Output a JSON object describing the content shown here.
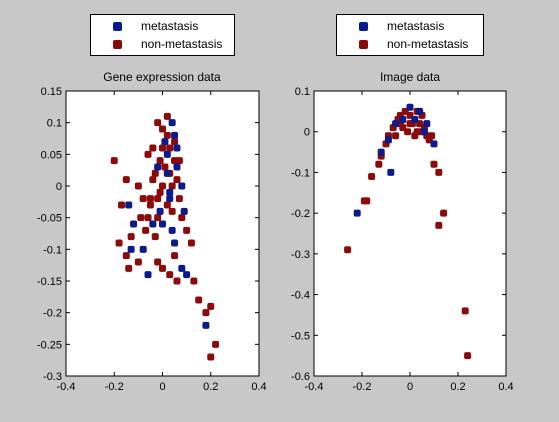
{
  "colors": {
    "figure_background": "#c8c8c8",
    "axes_background": "#ffffff",
    "metastasis": "#0b1a8c",
    "non_metastasis": "#8b0a0a"
  },
  "chart_data": [
    {
      "type": "scatter",
      "title": "Gene expression data",
      "xlim": [
        -0.4,
        0.4
      ],
      "ylim": [
        -0.3,
        0.15
      ],
      "x_ticks": [
        -0.4,
        -0.2,
        0,
        0.2,
        0.4
      ],
      "x_tick_labels": [
        "-0.4",
        "-0.2",
        "0",
        "0.2",
        "0.4"
      ],
      "y_ticks": [
        -0.3,
        -0.25,
        -0.2,
        -0.15,
        -0.1,
        -0.05,
        0,
        0.05,
        0.1,
        0.15
      ],
      "y_tick_labels": [
        "-0.3",
        "-0.25",
        "-0.2",
        "-0.15",
        "-0.1",
        "-0.05",
        "0",
        "0.05",
        "0.1",
        "0.15"
      ],
      "grid": false,
      "legend": {
        "placement": "above-axes",
        "entries": [
          "metastasis",
          "non-metastasis"
        ]
      },
      "series": [
        {
          "name": "metastasis",
          "points": [
            [
              0.04,
              0.1
            ],
            [
              0.05,
              0.08
            ],
            [
              0.02,
              0.05
            ],
            [
              0.06,
              0.03
            ],
            [
              0.08,
              0.0
            ],
            [
              0.03,
              -0.02
            ],
            [
              0.09,
              -0.04
            ],
            [
              -0.01,
              -0.04
            ],
            [
              0.0,
              -0.06
            ],
            [
              0.04,
              -0.07
            ],
            [
              -0.04,
              -0.06
            ],
            [
              -0.14,
              -0.03
            ],
            [
              -0.12,
              -0.06
            ],
            [
              -0.13,
              -0.1
            ],
            [
              -0.08,
              -0.1
            ],
            [
              0.05,
              -0.09
            ],
            [
              0.08,
              -0.13
            ],
            [
              0.1,
              -0.14
            ],
            [
              -0.06,
              -0.14
            ],
            [
              0.18,
              -0.22
            ],
            [
              0.02,
              0.02
            ],
            [
              -0.02,
              0.03
            ],
            [
              0.06,
              0.06
            ],
            [
              0.01,
              0.07
            ],
            [
              0.03,
              -0.01
            ]
          ]
        },
        {
          "name": "non-metastasis",
          "points": [
            [
              -0.2,
              0.04
            ],
            [
              -0.15,
              0.01
            ],
            [
              -0.1,
              0.0
            ],
            [
              -0.17,
              -0.03
            ],
            [
              -0.08,
              -0.02
            ],
            [
              -0.13,
              -0.08
            ],
            [
              -0.18,
              -0.09
            ],
            [
              -0.15,
              -0.11
            ],
            [
              -0.1,
              -0.12
            ],
            [
              -0.14,
              -0.13
            ],
            [
              -0.03,
              -0.08
            ],
            [
              -0.02,
              -0.12
            ],
            [
              0.0,
              -0.13
            ],
            [
              -0.06,
              -0.05
            ],
            [
              -0.05,
              -0.02
            ],
            [
              -0.03,
              0.02
            ],
            [
              -0.06,
              0.05
            ],
            [
              -0.04,
              0.06
            ],
            [
              -0.02,
              0.1
            ],
            [
              0.02,
              0.11
            ],
            [
              0.03,
              0.06
            ],
            [
              0.05,
              0.04
            ],
            [
              0.06,
              0.01
            ],
            [
              0.07,
              -0.02
            ],
            [
              0.08,
              -0.05
            ],
            [
              0.1,
              -0.07
            ],
            [
              0.12,
              -0.09
            ],
            [
              0.05,
              -0.11
            ],
            [
              0.03,
              -0.14
            ],
            [
              0.06,
              -0.15
            ],
            [
              0.13,
              -0.15
            ],
            [
              0.15,
              -0.18
            ],
            [
              0.2,
              -0.19
            ],
            [
              0.18,
              -0.2
            ],
            [
              0.22,
              -0.25
            ],
            [
              0.2,
              -0.27
            ],
            [
              0.0,
              0.0
            ],
            [
              0.01,
              0.03
            ],
            [
              -0.01,
              0.04
            ],
            [
              0.02,
              -0.03
            ],
            [
              -0.02,
              -0.05
            ],
            [
              0.04,
              -0.04
            ],
            [
              0.0,
              0.06
            ],
            [
              -0.04,
              0.01
            ],
            [
              -0.01,
              -0.01
            ],
            [
              0.03,
              0.02
            ],
            [
              0.05,
              0.07
            ],
            [
              -0.05,
              -0.03
            ],
            [
              0.07,
              0.04
            ],
            [
              -0.07,
              -0.07
            ],
            [
              -0.09,
              -0.05
            ],
            [
              0.02,
              0.08
            ],
            [
              0.0,
              0.09
            ],
            [
              -0.02,
              -0.02
            ],
            [
              0.04,
              0.0
            ]
          ]
        }
      ]
    },
    {
      "type": "scatter",
      "title": "Image data",
      "xlim": [
        -0.4,
        0.4
      ],
      "ylim": [
        -0.6,
        0.1
      ],
      "x_ticks": [
        -0.4,
        -0.2,
        0,
        0.2,
        0.4
      ],
      "x_tick_labels": [
        "-0.4",
        "-0.2",
        "0",
        "0.2",
        "0.4"
      ],
      "y_ticks": [
        -0.6,
        -0.5,
        -0.4,
        -0.3,
        -0.2,
        -0.1,
        0,
        0.1
      ],
      "y_tick_labels": [
        "-0.6",
        "-0.5",
        "-0.4",
        "-0.3",
        "-0.2",
        "-0.1",
        "0",
        "0.1"
      ],
      "grid": false,
      "legend": {
        "placement": "above-axes",
        "entries": [
          "metastasis",
          "non-metastasis"
        ]
      },
      "series": [
        {
          "name": "metastasis",
          "points": [
            [
              -0.22,
              -0.2
            ],
            [
              -0.12,
              -0.05
            ],
            [
              -0.09,
              -0.02
            ],
            [
              -0.06,
              0.02
            ],
            [
              0.0,
              0.06
            ],
            [
              0.02,
              0.03
            ],
            [
              0.06,
              0.0
            ],
            [
              0.1,
              -0.03
            ],
            [
              -0.03,
              0.03
            ],
            [
              0.04,
              0.05
            ],
            [
              -0.08,
              -0.1
            ],
            [
              0.07,
              0.02
            ]
          ]
        },
        {
          "name": "non-metastasis",
          "points": [
            [
              -0.26,
              -0.29
            ],
            [
              -0.19,
              -0.17
            ],
            [
              -0.18,
              -0.17
            ],
            [
              -0.16,
              -0.11
            ],
            [
              -0.13,
              -0.08
            ],
            [
              -0.12,
              -0.06
            ],
            [
              -0.1,
              -0.03
            ],
            [
              -0.09,
              -0.01
            ],
            [
              -0.07,
              0.01
            ],
            [
              -0.05,
              0.03
            ],
            [
              -0.04,
              0.04
            ],
            [
              -0.02,
              0.05
            ],
            [
              0.0,
              0.04
            ],
            [
              0.01,
              0.02
            ],
            [
              0.03,
              0.05
            ],
            [
              0.04,
              0.02
            ],
            [
              0.05,
              0.0
            ],
            [
              0.06,
              0.01
            ],
            [
              0.07,
              -0.01
            ],
            [
              0.08,
              -0.02
            ],
            [
              0.09,
              -0.01
            ],
            [
              0.1,
              -0.08
            ],
            [
              0.12,
              -0.1
            ],
            [
              0.14,
              -0.2
            ],
            [
              0.12,
              -0.23
            ],
            [
              0.23,
              -0.44
            ],
            [
              0.24,
              -0.55
            ],
            [
              -0.01,
              0.0
            ],
            [
              0.02,
              -0.01
            ],
            [
              -0.03,
              0.01
            ],
            [
              0.0,
              0.02
            ],
            [
              0.05,
              0.04
            ],
            [
              -0.06,
              -0.01
            ],
            [
              0.03,
              0.0
            ],
            [
              -0.04,
              0.02
            ]
          ]
        }
      ]
    }
  ]
}
